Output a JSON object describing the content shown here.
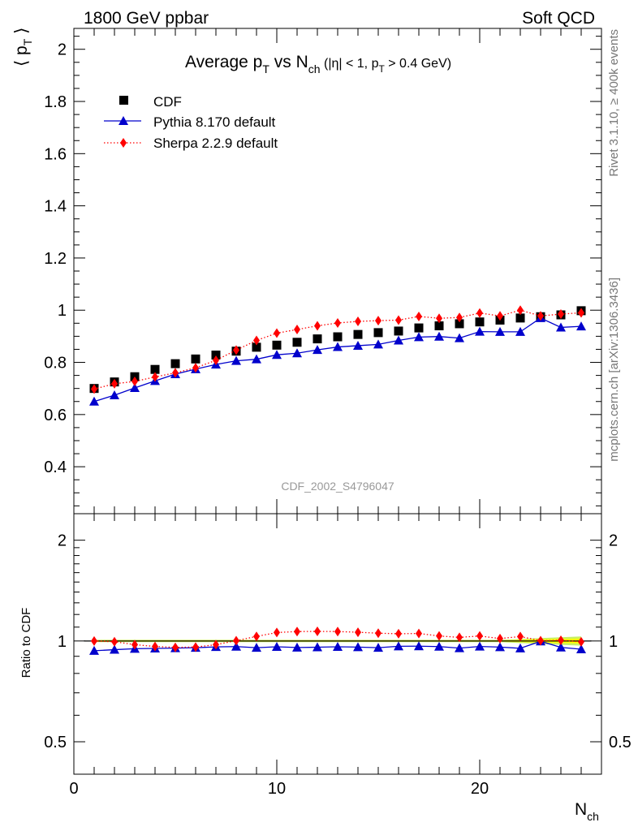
{
  "header": {
    "left": "1800 GeV ppbar",
    "right": "Soft QCD"
  },
  "side_text": {
    "rivet": "Rivet 3.1.10, ≥ 400k events",
    "mcplots": "mcplots.cern.ch [arXiv:1306.3436]"
  },
  "colors": {
    "pythia": "#0000cc",
    "sherpa": "#ff0000",
    "data": "#000000",
    "band_inner": "#ffff00",
    "band_outer": "#c8f064"
  },
  "chart_data": [
    {
      "type": "scatter",
      "panel": "main",
      "title": "Average p_T vs N_ch (|η| < 1, p_T > 0.4 GeV)",
      "title_parts": {
        "main": "Average p",
        "sub1": "T",
        "mid": " vs N",
        "sub2": "ch",
        "cut_a": " (|η| < 1, p",
        "sub3": "T",
        "cut_b": " > 0.4 GeV)"
      },
      "ylabel": "⟨ p_T ⟩",
      "ylabel_parts": {
        "left": "⟨ p",
        "sub": "T",
        "right": " ⟩"
      },
      "xlim": [
        0,
        26
      ],
      "ylim": [
        0.22,
        2.08
      ],
      "yticks": [
        0.4,
        0.6,
        0.8,
        1.0,
        1.2,
        1.4,
        1.6,
        1.8,
        2.0
      ],
      "ytick_labels": [
        "0.4",
        "0.6",
        "0.8",
        "1",
        "1.2",
        "1.4",
        "1.6",
        "1.8",
        "2"
      ],
      "analysis_label": "CDF_2002_S4796047",
      "legend_position": "top-left",
      "x": [
        1,
        2,
        3,
        4,
        5,
        6,
        7,
        8,
        9,
        10,
        11,
        12,
        13,
        14,
        15,
        16,
        17,
        18,
        19,
        20,
        21,
        22,
        23,
        24,
        25
      ],
      "series": [
        {
          "name": "CDF",
          "style": "square",
          "values": [
            0.7,
            0.725,
            0.745,
            0.773,
            0.795,
            0.813,
            0.828,
            0.843,
            0.858,
            0.866,
            0.877,
            0.89,
            0.898,
            0.907,
            0.914,
            0.92,
            0.932,
            0.94,
            0.948,
            0.955,
            0.962,
            0.97,
            0.975,
            0.982,
            0.998
          ]
        },
        {
          "name": "Pythia 8.170 default",
          "style": "triangle-line",
          "values": [
            0.65,
            0.674,
            0.702,
            0.729,
            0.755,
            0.774,
            0.792,
            0.806,
            0.812,
            0.829,
            0.835,
            0.848,
            0.859,
            0.864,
            0.869,
            0.884,
            0.897,
            0.899,
            0.893,
            0.918,
            0.917,
            0.917,
            0.97,
            0.934,
            0.938
          ]
        },
        {
          "name": "Sherpa 2.2.9 default",
          "style": "diamond-dotted",
          "values": [
            0.698,
            0.718,
            0.727,
            0.744,
            0.76,
            0.779,
            0.808,
            0.847,
            0.884,
            0.912,
            0.926,
            0.94,
            0.951,
            0.957,
            0.96,
            0.962,
            0.976,
            0.969,
            0.972,
            0.989,
            0.978,
            1.0,
            0.978,
            0.985,
            0.99
          ]
        }
      ]
    },
    {
      "type": "scatter",
      "panel": "ratio",
      "ylabel": "Ratio to CDF",
      "xlabel": "N_ch",
      "xlabel_parts": {
        "main": "N",
        "sub": "ch"
      },
      "xlim": [
        0,
        26
      ],
      "ylim": [
        0.4,
        2.4
      ],
      "yscale": "log",
      "yticks": [
        0.5,
        1,
        2
      ],
      "ytick_labels": [
        "0.5",
        "1",
        "2"
      ],
      "xticks": [
        0,
        10,
        20
      ],
      "xtick_labels": [
        "0",
        "10",
        "20"
      ],
      "x": [
        1,
        2,
        3,
        4,
        5,
        6,
        7,
        8,
        9,
        10,
        11,
        12,
        13,
        14,
        15,
        16,
        17,
        18,
        19,
        20,
        21,
        22,
        23,
        24,
        25
      ],
      "series": [
        {
          "name": "Pythia 8.170 default",
          "style": "triangle-line",
          "values": [
            0.935,
            0.942,
            0.948,
            0.95,
            0.952,
            0.955,
            0.96,
            0.962,
            0.955,
            0.961,
            0.956,
            0.958,
            0.961,
            0.959,
            0.955,
            0.964,
            0.965,
            0.962,
            0.952,
            0.963,
            0.959,
            0.951,
            0.998,
            0.957,
            0.945
          ]
        },
        {
          "name": "Sherpa 2.2.9 default",
          "style": "diamond-dotted",
          "values": [
            1.0,
            0.995,
            0.975,
            0.963,
            0.957,
            0.959,
            0.975,
            1.002,
            1.032,
            1.06,
            1.067,
            1.068,
            1.067,
            1.062,
            1.055,
            1.051,
            1.053,
            1.035,
            1.025,
            1.035,
            1.017,
            1.031,
            1.002,
            1.005,
            0.994
          ]
        }
      ]
    }
  ]
}
